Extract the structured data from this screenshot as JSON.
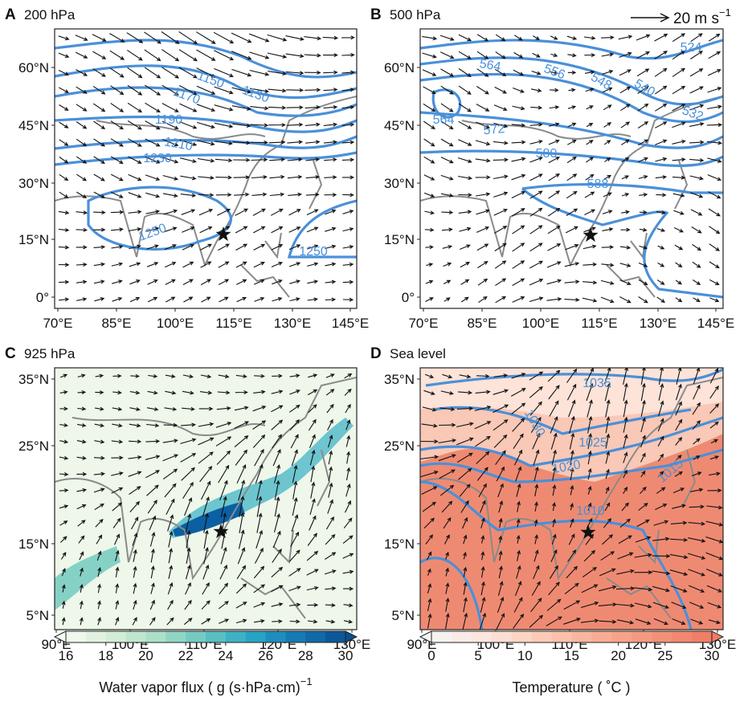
{
  "panels": [
    {
      "letter": "A",
      "title": "200 hPa",
      "yticks": [
        "60°N",
        "45°N",
        "30°N",
        "15°N",
        "0°"
      ],
      "xticks": [
        "70°E",
        "85°E",
        "100°E",
        "115°E",
        "130°E",
        "145°E"
      ],
      "contour_labels": [
        "1130",
        "1150",
        "1170",
        "1190",
        "1210",
        "1230",
        "1250",
        "1250"
      ]
    },
    {
      "letter": "B",
      "title": "500 hPa",
      "yticks": [
        "60°N",
        "45°N",
        "30°N",
        "15°N",
        "0°"
      ],
      "xticks": [
        "70°E",
        "85°E",
        "100°E",
        "115°E",
        "130°E",
        "145°E"
      ],
      "contour_labels": [
        "524",
        "532",
        "540",
        "548",
        "556",
        "564",
        "564",
        "572",
        "580",
        "588"
      ]
    },
    {
      "letter": "C",
      "title": "925 hPa",
      "yticks": [
        "35°N",
        "25°N",
        "15°N",
        "5°N"
      ],
      "xticks": [
        "90°E",
        "100°E",
        "110°E",
        "120°E",
        "130°E"
      ],
      "contour_labels": []
    },
    {
      "letter": "D",
      "title": "Sea level",
      "yticks": [
        "35°N",
        "25°N",
        "15°N",
        "5°N"
      ],
      "xticks": [
        "90°E",
        "100°E",
        "110°E",
        "120°E",
        "130°E"
      ],
      "contour_labels": [
        "1035",
        "1030",
        "1025",
        "1020",
        "1015",
        "1010"
      ]
    }
  ],
  "wind_scale": {
    "label": "20 m s",
    "exponent": "−1"
  },
  "colorbars": [
    {
      "ticks": [
        16,
        18,
        20,
        22,
        24,
        26,
        28,
        30
      ],
      "label": "Water vapor flux ( g (s·hPa·cm)",
      "exponent": "−1"
    },
    {
      "ticks": [
        0,
        5,
        10,
        15,
        20,
        25,
        30
      ],
      "label": "Temperature ( ˚C )"
    }
  ]
}
